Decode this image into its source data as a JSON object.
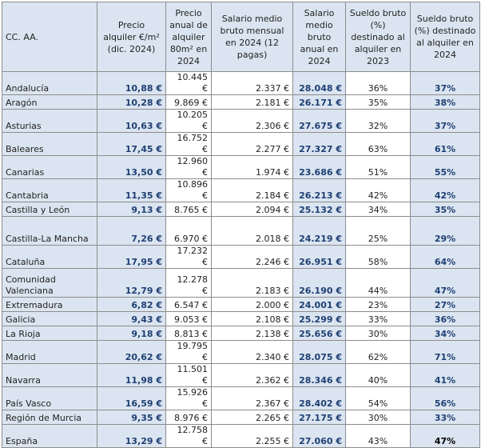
{
  "table": {
    "header": [
      "CC. AA.",
      "Precio alquiler €/m² (dic. 2024)",
      "Precio anual de alquiler 80m² en 2024",
      "Salario medio bruto mensual en 2024 (12 pagas)",
      "Salario medio bruto anual en 2024",
      "Sueldo bruto (%) destinado al alquiler en 2023",
      "Sueldo bruto (%) destinado al alquiler en 2024"
    ],
    "rows": [
      [
        "Andalucía",
        "10,88 €",
        "10.445 €",
        "2.337 €",
        "28.048 €",
        "36%",
        "37%"
      ],
      [
        "Aragón",
        "10,28 €",
        "9.869 €",
        "2.181 €",
        "26.171 €",
        "35%",
        "38%"
      ],
      [
        "Asturias",
        "10,63 €",
        "10.205 €",
        "2.306 €",
        "27.675 €",
        "32%",
        "37%"
      ],
      [
        "Baleares",
        "17,45 €",
        "16.752 €",
        "2.277 €",
        "27.327 €",
        "63%",
        "61%"
      ],
      [
        "Canarias",
        "13,50 €",
        "12.960 €",
        "1.974 €",
        "23.686 €",
        "51%",
        "55%"
      ],
      [
        "Cantabria",
        "11,35 €",
        "10.896 €",
        "2.184 €",
        "26.213 €",
        "42%",
        "42%"
      ],
      [
        "Castilla y León",
        "9,13 €",
        "8.765 €",
        "2.094 €",
        "25.132 €",
        "34%",
        "35%"
      ],
      [
        "Castilla-La Mancha",
        "7,26 €",
        "6.970 €",
        "2.018 €",
        "24.219 €",
        "25%",
        "29%"
      ],
      [
        "Cataluña",
        "17,95 €",
        "17.232 €",
        "2.246 €",
        "26.951 €",
        "58%",
        "64%"
      ],
      [
        "Comunidad Valenciana",
        "12,79 €",
        "12.278 €",
        "2.183 €",
        "26.190 €",
        "44%",
        "47%"
      ],
      [
        "Extremadura",
        "6,82 €",
        "6.547 €",
        "2.000 €",
        "24.001 €",
        "23%",
        "27%"
      ],
      [
        "Galicia",
        "9,43 €",
        "9.053 €",
        "2.108 €",
        "25.299 €",
        "33%",
        "36%"
      ],
      [
        "La Rioja",
        "9,18 €",
        "8.813 €",
        "2.138 €",
        "25.656 €",
        "30%",
        "34%"
      ],
      [
        "Madrid",
        "20,62 €",
        "19.795 €",
        "2.340 €",
        "28.075 €",
        "62%",
        "71%"
      ],
      [
        "Navarra",
        "11,98 €",
        "11.501 €",
        "2.362 €",
        "28.346 €",
        "40%",
        "41%"
      ],
      [
        "País Vasco",
        "16,59 €",
        "15.926 €",
        "2.367 €",
        "28.402 €",
        "54%",
        "56%"
      ],
      [
        "Región de Murcia",
        "9,35 €",
        "8.976 €",
        "2.265 €",
        "27.175 €",
        "30%",
        "33%"
      ],
      [
        "España",
        "13,29 €",
        "12.758 €",
        "2.255 €",
        "27.060 €",
        "43%",
        "47%"
      ]
    ]
  }
}
